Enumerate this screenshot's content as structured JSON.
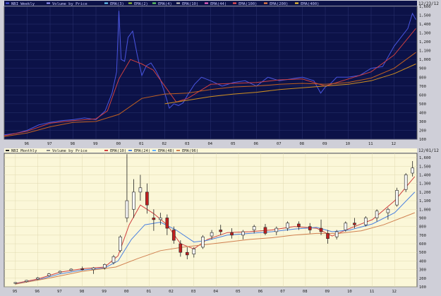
{
  "chart_data": [
    {
      "type": "line",
      "title": "NBI Weekly",
      "date_label": "12/23/12",
      "legend": [
        "NBI Weekly",
        "Volume by Price",
        "EMA(3)",
        "EMA(2)",
        "EMA(4)",
        "EMA(10)",
        "EMA(44)",
        "EMA(100)",
        "EMA(200)",
        "EMA(400)"
      ],
      "x_ticks": [
        "96",
        "97",
        "98",
        "99",
        "00",
        "01",
        "02",
        "03",
        "04",
        "05",
        "06",
        "07",
        "08",
        "09",
        "10",
        "11",
        "12"
      ],
      "y_ticks": [
        "100",
        "200",
        "300",
        "400",
        "500",
        "600",
        "700",
        "800",
        "900",
        "1,000",
        "1,100",
        "1,200",
        "1,300",
        "1,400",
        "1,500",
        "1,600"
      ],
      "ylim": [
        100,
        1600
      ],
      "xlim": [
        1995.0,
        2013.0
      ],
      "series": [
        {
          "name": "NBI Weekly",
          "color": "#4a55e0",
          "x": [
            1995.0,
            1995.5,
            1996.0,
            1996.5,
            1997.0,
            1997.5,
            1998.0,
            1998.5,
            1999.0,
            1999.4,
            1999.7,
            1999.9,
            2000.0,
            2000.1,
            2000.25,
            2000.4,
            2000.6,
            2000.8,
            2001.0,
            2001.2,
            2001.4,
            2001.6,
            2001.8,
            2002.0,
            2002.2,
            2002.4,
            2002.6,
            2002.8,
            2003.0,
            2003.3,
            2003.6,
            2004.0,
            2004.5,
            2005.0,
            2005.5,
            2006.0,
            2006.5,
            2007.0,
            2007.5,
            2008.0,
            2008.5,
            2008.8,
            2009.0,
            2009.2,
            2009.5,
            2010.0,
            2010.5,
            2011.0,
            2011.5,
            2012.0,
            2012.3,
            2012.6,
            2012.8,
            2012.95
          ],
          "values": [
            150,
            165,
            200,
            260,
            290,
            310,
            320,
            340,
            320,
            420,
            620,
            860,
            1550,
            1000,
            980,
            1250,
            1320,
            1050,
            820,
            930,
            960,
            880,
            780,
            620,
            450,
            500,
            480,
            510,
            600,
            720,
            800,
            760,
            700,
            740,
            760,
            700,
            800,
            760,
            780,
            800,
            760,
            620,
            690,
            720,
            800,
            800,
            820,
            900,
            920,
            1150,
            1250,
            1350,
            1520,
            1450
          ]
        },
        {
          "name": "EMA(10)",
          "color": "#d04040",
          "x": [
            1995.0,
            1996.0,
            1997.0,
            1998.0,
            1999.0,
            1999.5,
            2000.0,
            2000.5,
            2001.0,
            2001.5,
            2002.0,
            2002.5,
            2003.0,
            2004.0,
            2005.0,
            2006.0,
            2007.0,
            2008.0,
            2009.0,
            2010.0,
            2011.0,
            2012.0,
            2012.95
          ],
          "values": [
            140,
            190,
            280,
            310,
            330,
            420,
            780,
            1000,
            950,
            880,
            700,
            520,
            560,
            720,
            730,
            740,
            770,
            780,
            700,
            780,
            860,
            1050,
            1350
          ]
        },
        {
          "name": "EMA(200)",
          "color": "#c06020",
          "x": [
            1995.0,
            1996.0,
            1997.0,
            1998.0,
            1999.0,
            2000.0,
            2001.0,
            2002.0,
            2003.0,
            2004.0,
            2005.0,
            2006.0,
            2007.0,
            2008.0,
            2009.0,
            2010.0,
            2011.0,
            2012.0,
            2012.95
          ],
          "values": [
            130,
            170,
            240,
            290,
            300,
            380,
            560,
            610,
            620,
            660,
            690,
            700,
            720,
            730,
            720,
            740,
            790,
            900,
            1080
          ]
        },
        {
          "name": "EMA(400)",
          "color": "#d09020",
          "x": [
            2002.0,
            2003.0,
            2004.0,
            2005.0,
            2006.0,
            2007.0,
            2008.0,
            2009.0,
            2010.0,
            2011.0,
            2012.0,
            2012.95
          ],
          "values": [
            500,
            540,
            580,
            610,
            630,
            660,
            680,
            700,
            720,
            760,
            840,
            950
          ]
        }
      ]
    },
    {
      "type": "line",
      "title": "NBI Monthly",
      "date_label": "12/01/12",
      "legend": [
        "NBI Monthly",
        "Volume by Price",
        "EMA(10)",
        "EMA(24)",
        "EMA(48)",
        "EMA(96)"
      ],
      "x_ticks": [
        "95",
        "96",
        "97",
        "98",
        "99",
        "00",
        "01",
        "02",
        "03",
        "04",
        "05",
        "06",
        "07",
        "08",
        "09",
        "10",
        "11",
        "12"
      ],
      "y_ticks": [
        "100",
        "200",
        "300",
        "400",
        "500",
        "600",
        "700",
        "800",
        "900",
        "1,000",
        "1,100",
        "1,200",
        "1,300",
        "1,400",
        "1,500",
        "1,600"
      ],
      "ylim": [
        100,
        1650
      ],
      "xlim": [
        1994.5,
        2013.0
      ],
      "candles": [
        {
          "x": 1995.0,
          "o": 140,
          "h": 155,
          "l": 130,
          "c": 150
        },
        {
          "x": 1995.5,
          "o": 160,
          "h": 180,
          "l": 150,
          "c": 175
        },
        {
          "x": 1996.0,
          "o": 190,
          "h": 215,
          "l": 180,
          "c": 205
        },
        {
          "x": 1996.5,
          "o": 230,
          "h": 260,
          "l": 220,
          "c": 250
        },
        {
          "x": 1997.0,
          "o": 265,
          "h": 290,
          "l": 255,
          "c": 280
        },
        {
          "x": 1997.5,
          "o": 290,
          "h": 315,
          "l": 280,
          "c": 305
        },
        {
          "x": 1998.0,
          "o": 310,
          "h": 335,
          "l": 290,
          "c": 300
        },
        {
          "x": 1998.5,
          "o": 300,
          "h": 330,
          "l": 250,
          "c": 320
        },
        {
          "x": 1999.0,
          "o": 320,
          "h": 370,
          "l": 300,
          "c": 360
        },
        {
          "x": 1999.4,
          "o": 380,
          "h": 470,
          "l": 360,
          "c": 450
        },
        {
          "x": 1999.7,
          "o": 520,
          "h": 700,
          "l": 500,
          "c": 680
        },
        {
          "x": 2000.0,
          "o": 900,
          "h": 1640,
          "l": 850,
          "c": 1100
        },
        {
          "x": 2000.3,
          "o": 1000,
          "h": 1350,
          "l": 900,
          "c": 1200
        },
        {
          "x": 2000.6,
          "o": 1200,
          "h": 1400,
          "l": 1100,
          "c": 1250
        },
        {
          "x": 2000.9,
          "o": 1200,
          "h": 1300,
          "l": 950,
          "c": 1050
        },
        {
          "x": 2001.2,
          "o": 900,
          "h": 1000,
          "l": 750,
          "c": 880
        },
        {
          "x": 2001.5,
          "o": 880,
          "h": 960,
          "l": 820,
          "c": 900
        },
        {
          "x": 2001.8,
          "o": 900,
          "h": 940,
          "l": 700,
          "c": 780
        },
        {
          "x": 2002.1,
          "o": 760,
          "h": 800,
          "l": 600,
          "c": 640
        },
        {
          "x": 2002.4,
          "o": 600,
          "h": 640,
          "l": 450,
          "c": 500
        },
        {
          "x": 2002.7,
          "o": 500,
          "h": 560,
          "l": 420,
          "c": 470
        },
        {
          "x": 2003.0,
          "o": 480,
          "h": 560,
          "l": 440,
          "c": 540
        },
        {
          "x": 2003.4,
          "o": 560,
          "h": 700,
          "l": 540,
          "c": 680
        },
        {
          "x": 2003.8,
          "o": 690,
          "h": 760,
          "l": 650,
          "c": 730
        },
        {
          "x": 2004.2,
          "o": 760,
          "h": 820,
          "l": 700,
          "c": 740
        },
        {
          "x": 2004.7,
          "o": 730,
          "h": 780,
          "l": 660,
          "c": 700
        },
        {
          "x": 2005.2,
          "o": 700,
          "h": 760,
          "l": 650,
          "c": 740
        },
        {
          "x": 2005.7,
          "o": 760,
          "h": 820,
          "l": 720,
          "c": 800
        },
        {
          "x": 2006.2,
          "o": 790,
          "h": 830,
          "l": 700,
          "c": 720
        },
        {
          "x": 2006.7,
          "o": 740,
          "h": 800,
          "l": 700,
          "c": 780
        },
        {
          "x": 2007.2,
          "o": 780,
          "h": 860,
          "l": 750,
          "c": 840
        },
        {
          "x": 2007.7,
          "o": 830,
          "h": 860,
          "l": 760,
          "c": 800
        },
        {
          "x": 2008.2,
          "o": 800,
          "h": 840,
          "l": 720,
          "c": 760
        },
        {
          "x": 2008.7,
          "o": 780,
          "h": 880,
          "l": 700,
          "c": 740
        },
        {
          "x": 2009.0,
          "o": 720,
          "h": 760,
          "l": 600,
          "c": 660
        },
        {
          "x": 2009.4,
          "o": 680,
          "h": 760,
          "l": 650,
          "c": 740
        },
        {
          "x": 2009.8,
          "o": 760,
          "h": 860,
          "l": 740,
          "c": 840
        },
        {
          "x": 2010.2,
          "o": 840,
          "h": 900,
          "l": 780,
          "c": 820
        },
        {
          "x": 2010.7,
          "o": 820,
          "h": 920,
          "l": 800,
          "c": 900
        },
        {
          "x": 2011.2,
          "o": 900,
          "h": 1000,
          "l": 860,
          "c": 980
        },
        {
          "x": 2011.7,
          "o": 960,
          "h": 1020,
          "l": 880,
          "c": 1000
        },
        {
          "x": 2012.1,
          "o": 1050,
          "h": 1250,
          "l": 1030,
          "c": 1220
        },
        {
          "x": 2012.5,
          "o": 1230,
          "h": 1420,
          "l": 1200,
          "c": 1400
        },
        {
          "x": 2012.8,
          "o": 1420,
          "h": 1560,
          "l": 1380,
          "c": 1480
        }
      ],
      "series": [
        {
          "name": "EMA(10)",
          "color": "#d04040",
          "x": [
            1995.0,
            1996.0,
            1997.0,
            1998.0,
            1999.0,
            1999.6,
            2000.1,
            2000.6,
            2001.2,
            2001.8,
            2002.4,
            2003.0,
            2003.6,
            2004.5,
            2005.5,
            2006.5,
            2007.5,
            2008.5,
            2009.2,
            2010.0,
            2011.0,
            2012.0,
            2012.9
          ],
          "values": [
            140,
            190,
            270,
            310,
            330,
            460,
            820,
            1050,
            950,
            820,
            600,
            540,
            650,
            730,
            740,
            760,
            800,
            780,
            690,
            780,
            880,
            1100,
            1380
          ]
        },
        {
          "name": "EMA(24)",
          "color": "#4a80e0",
          "x": [
            1995.0,
            1996.0,
            1997.0,
            1998.0,
            1999.0,
            1999.6,
            2000.2,
            2000.8,
            2001.5,
            2002.2,
            2003.0,
            2003.6,
            2004.5,
            2005.5,
            2006.5,
            2007.5,
            2008.5,
            2009.2,
            2010.0,
            2011.0,
            2012.0,
            2012.9
          ],
          "values": [
            135,
            180,
            250,
            295,
            320,
            400,
            650,
            820,
            850,
            760,
            620,
            640,
            700,
            720,
            740,
            770,
            790,
            740,
            760,
            830,
            960,
            1200
          ]
        },
        {
          "name": "EMA(96)",
          "color": "#d08050",
          "x": [
            1995.0,
            1996.5,
            1998.0,
            1999.5,
            2000.5,
            2001.5,
            2002.5,
            2003.5,
            2004.5,
            2005.5,
            2006.5,
            2007.5,
            2008.5,
            2009.5,
            2010.5,
            2011.5,
            2012.9
          ],
          "values": [
            130,
            200,
            280,
            330,
            430,
            520,
            560,
            590,
            620,
            650,
            670,
            700,
            720,
            720,
            750,
            820,
            960
          ]
        }
      ]
    }
  ]
}
